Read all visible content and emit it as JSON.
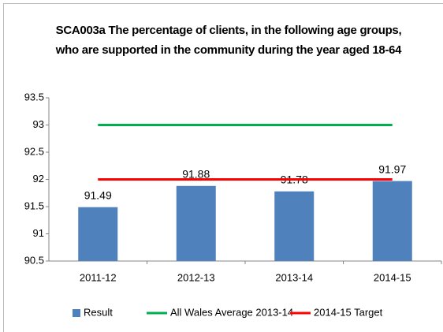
{
  "chart_data": {
    "type": "bar",
    "title": "SCA003a The percentage of clients, in the following age groups, who are supported in the community during the year aged 18-64",
    "categories": [
      "2011-12",
      "2012-13",
      "2013-14",
      "2014-15"
    ],
    "series": [
      {
        "name": "Result",
        "type": "bar",
        "color": "#4f81bd",
        "values": [
          91.49,
          91.88,
          91.78,
          91.97
        ]
      },
      {
        "name": "All Wales Average 2013-14",
        "type": "line",
        "color": "#00b050",
        "values": [
          93,
          93,
          93,
          93
        ]
      },
      {
        "name": "2014-15 Target",
        "type": "line",
        "color": "#ff0000",
        "values": [
          92,
          92,
          92,
          92
        ]
      }
    ],
    "ylim": [
      90.5,
      93.5
    ],
    "yticks": [
      90.5,
      91,
      91.5,
      92,
      92.5,
      93,
      93.5
    ],
    "grid": false,
    "legend": "bottom"
  }
}
